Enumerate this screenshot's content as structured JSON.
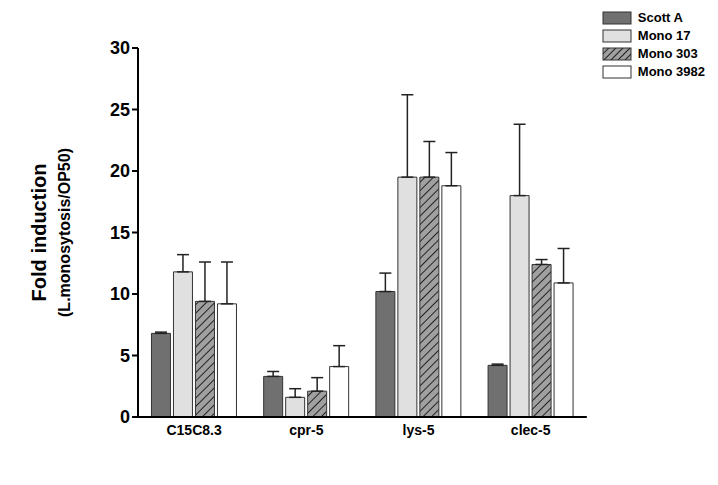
{
  "chart_data": {
    "type": "bar",
    "categories": [
      "C15C8.3",
      "cpr-5",
      "lys-5",
      "clec-5"
    ],
    "y_label": "Fold induction\n(L.monosytosis/OP50)",
    "ylim": [
      0,
      30
    ],
    "yticks": [
      0,
      5,
      10,
      15,
      20,
      25,
      30
    ],
    "grid": false,
    "legend": "top-right",
    "series": [
      {
        "name": "Scott A",
        "color": "#707070",
        "values": [
          6.8,
          3.3,
          10.2,
          4.2
        ],
        "errors": [
          0.1,
          0.4,
          1.5,
          0.1
        ]
      },
      {
        "name": "Mono 17",
        "color": "#e0e0e0",
        "values": [
          11.8,
          1.6,
          19.5,
          18.0
        ],
        "errors": [
          1.4,
          0.7,
          6.7,
          5.8
        ]
      },
      {
        "name": "Mono 303",
        "color": "#a0a0a0",
        "values": [
          9.4,
          2.1,
          19.5,
          12.4
        ],
        "errors": [
          3.2,
          1.1,
          2.9,
          0.4
        ]
      },
      {
        "name": "Mono 3982",
        "color": "#ffffff",
        "values": [
          9.2,
          4.1,
          18.8,
          10.9
        ],
        "errors": [
          3.4,
          1.7,
          2.7,
          2.8
        ]
      }
    ]
  }
}
